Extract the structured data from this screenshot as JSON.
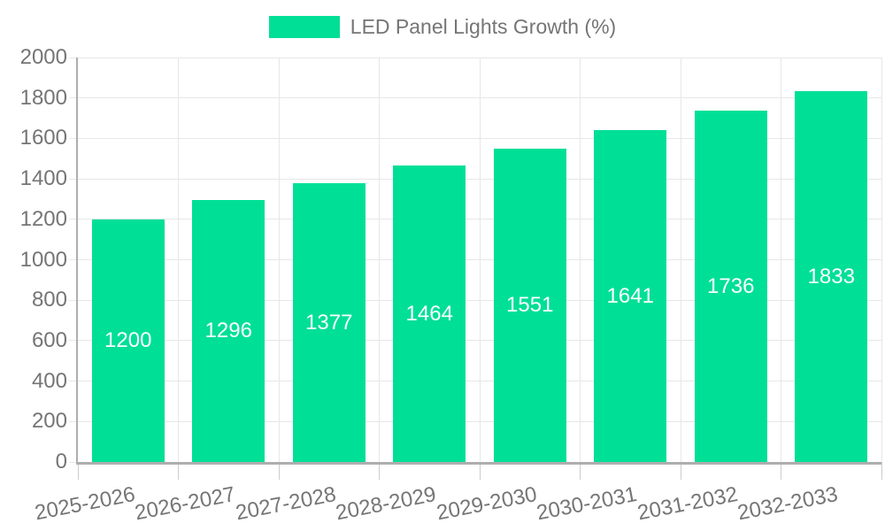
{
  "chart_data": {
    "type": "bar",
    "title": "",
    "series_name": "LED Panel Lights Growth (%)",
    "categories": [
      "2025-2026",
      "2026-2027",
      "2027-2028",
      "2028-2029",
      "2029-2030",
      "2030-2031",
      "2031-2032",
      "2032-2033"
    ],
    "values": [
      1200,
      1296,
      1377,
      1464,
      1551,
      1641,
      1736,
      1833
    ],
    "xlabel": "",
    "ylabel": "",
    "ylim": [
      0,
      2000
    ],
    "yticks": [
      0,
      200,
      400,
      600,
      800,
      1000,
      1200,
      1400,
      1600,
      1800,
      2000
    ],
    "grid": true,
    "legend_position": "top",
    "value_labels": "inside-center",
    "colors": {
      "bar": "#00df96",
      "value_label": "#ffffff",
      "grid_line": "#e7e7e7",
      "tick_line": "#cccccc",
      "axis_line": "#aeaeae",
      "tick_label": "#757575",
      "background": "#ffffff"
    }
  }
}
